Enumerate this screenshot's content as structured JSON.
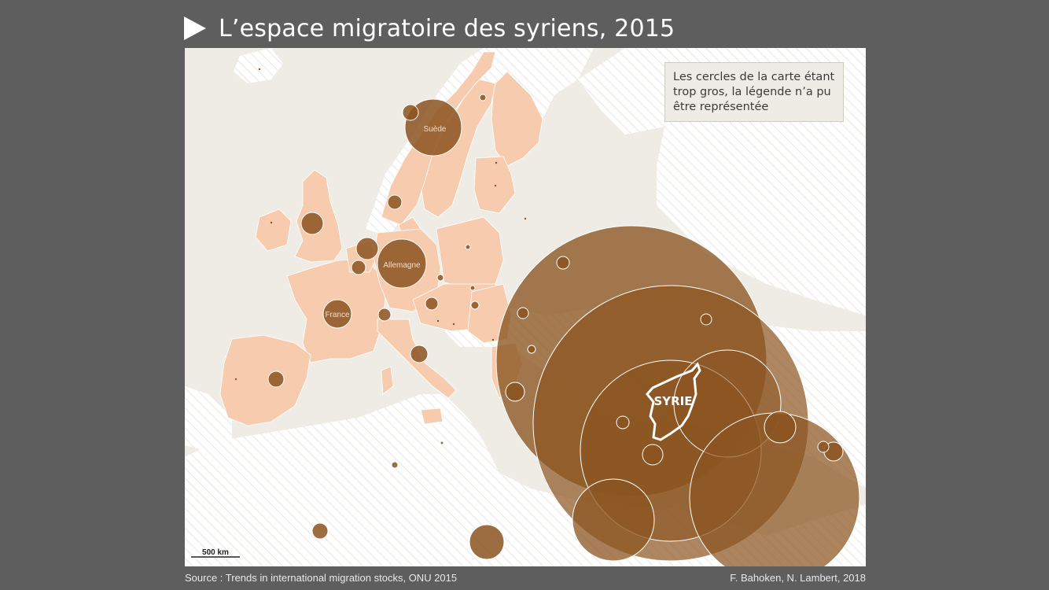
{
  "title": "L’espace migratoire des syriens, 2015",
  "legend_note": "Les cercles de la carte étant trop gros, la légende n’a pu être représentée",
  "labels": {
    "sweden": "Suède",
    "germany": "Allemagne",
    "france": "France",
    "syria": "SYRIE"
  },
  "scale_bar": "500 km",
  "source": "Source : Trends in international migration stocks, ONU 2015",
  "credits": "F. Bahoken, N. Lambert, 2018",
  "colors": {
    "background": "#5e5e5e",
    "sea": "#efece6",
    "eu_land": "#f6cbae",
    "circle": "#8b5420"
  }
}
